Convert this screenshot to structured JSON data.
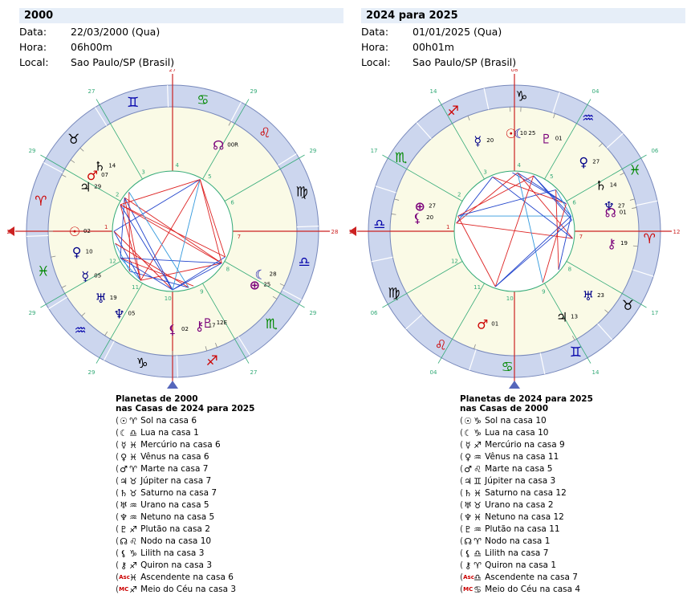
{
  "left": {
    "title": "2000",
    "labels": {
      "date": "Data:",
      "time": "Hora:",
      "place": "Local:"
    },
    "date": "22/03/2000 (Qua)",
    "time": "06h00m",
    "place": "Sao Paulo/SP (Brasil)",
    "legend_title_1": "Planetas de 2000",
    "legend_title_2": "nas Casas de 2024 para 2025",
    "legend": [
      {
        "p": "☉",
        "s": "♈",
        "text": "Sol na casa 6"
      },
      {
        "p": "☾",
        "s": "♎",
        "text": "Lua na casa 1"
      },
      {
        "p": "☿",
        "s": "♓",
        "text": "Mercúrio na casa 6"
      },
      {
        "p": "♀",
        "s": "♓",
        "text": "Vênus na casa 6"
      },
      {
        "p": "♂",
        "s": "♈",
        "text": "Marte na casa 7"
      },
      {
        "p": "♃",
        "s": "♉",
        "text": "Júpiter na casa 7"
      },
      {
        "p": "♄",
        "s": "♉",
        "text": "Saturno na casa 7"
      },
      {
        "p": "♅",
        "s": "♒",
        "text": "Urano na casa 5"
      },
      {
        "p": "♆",
        "s": "♒",
        "text": "Netuno na casa 5"
      },
      {
        "p": "♇",
        "s": "♐",
        "text": "Plutão na casa 2"
      },
      {
        "p": "☊",
        "s": "♌",
        "text": "Nodo na casa 10"
      },
      {
        "p": "⚸",
        "s": "♑",
        "text": "Lilith na casa 3"
      },
      {
        "p": "⚷",
        "s": "♐",
        "text": "Quiron na casa 3"
      },
      {
        "p": "Asc",
        "s": "♓",
        "text": "Ascendente na casa 6"
      },
      {
        "p": "MC",
        "s": "♐",
        "text": "Meio do Céu na casa 3"
      }
    ]
  },
  "right": {
    "title": "2024 para 2025",
    "labels": {
      "date": "Data:",
      "time": "Hora:",
      "place": "Local:"
    },
    "date": "01/01/2025 (Qua)",
    "time": "00h01m",
    "place": "Sao Paulo/SP (Brasil)",
    "legend_title_1": "Planetas de 2024 para 2025",
    "legend_title_2": "nas Casas de 2000",
    "legend": [
      {
        "p": "☉",
        "s": "♑",
        "text": "Sol na casa 10"
      },
      {
        "p": "☾",
        "s": "♑",
        "text": "Lua na casa 10"
      },
      {
        "p": "☿",
        "s": "♐",
        "text": "Mercúrio na casa 9"
      },
      {
        "p": "♀",
        "s": "♒",
        "text": "Vênus na casa 11"
      },
      {
        "p": "♂",
        "s": "♌",
        "text": "Marte na casa 5"
      },
      {
        "p": "♃",
        "s": "♊",
        "text": "Júpiter na casa 3"
      },
      {
        "p": "♄",
        "s": "♓",
        "text": "Saturno na casa 12"
      },
      {
        "p": "♅",
        "s": "♉",
        "text": "Urano na casa 2"
      },
      {
        "p": "♆",
        "s": "♓",
        "text": "Netuno na casa 12"
      },
      {
        "p": "♇",
        "s": "♒",
        "text": "Plutão na casa 11"
      },
      {
        "p": "☊",
        "s": "♈",
        "text": "Nodo na casa 1"
      },
      {
        "p": "⚸",
        "s": "♎",
        "text": "Lilith na casa 7"
      },
      {
        "p": "⚷",
        "s": "♈",
        "text": "Quiron na casa 1"
      },
      {
        "p": "Asc",
        "s": "♎",
        "text": "Ascendente na casa 7"
      },
      {
        "p": "MC",
        "s": "♋",
        "text": "Meio do Céu na casa 4"
      }
    ]
  },
  "wheels": {
    "left": {
      "asc_lon": 2,
      "signs": [
        "♈",
        "♉",
        "♊",
        "♋",
        "♌",
        "♍",
        "♎",
        "♏",
        "♐",
        "♑",
        "♒",
        "♓"
      ],
      "sign_colors": [
        "#cc0000",
        "#000000",
        "#0000aa",
        "#008800",
        "#cc0000",
        "#000000",
        "#0000aa",
        "#008800",
        "#cc0000",
        "#000000",
        "#0000aa",
        "#008800"
      ],
      "cusp_degrees": [
        "28",
        "29",
        "27",
        "27",
        "29",
        "29",
        "28",
        "29",
        "27",
        "27",
        "29",
        "29"
      ],
      "house_numbers": [
        "1",
        "2",
        "3",
        "4",
        "5",
        "6",
        "7",
        "8",
        "9",
        "10",
        "11",
        "12"
      ],
      "planets": [
        {
          "g": "☉",
          "d": "02",
          "lon": 2,
          "c": "#cc0000"
        },
        {
          "g": "♅",
          "d": "19",
          "lon": 319,
          "c": "#000088"
        },
        {
          "g": "♆",
          "d": "05",
          "lon": 305,
          "c": "#000088"
        },
        {
          "g": "☿",
          "d": "05",
          "lon": 335,
          "c": "#000088"
        },
        {
          "g": "♀",
          "d": "10",
          "lon": 350,
          "c": "#000088"
        },
        {
          "g": "♂",
          "d": "07",
          "lon": 37,
          "c": "#cc0000"
        },
        {
          "g": "♃",
          "d": "29",
          "lon": 29,
          "c": "#000000"
        },
        {
          "g": "♄",
          "d": "14",
          "lon": 44,
          "c": "#000000"
        },
        {
          "g": "⚸",
          "d": "02",
          "lon": 272,
          "c": "#7a007a"
        },
        {
          "g": "♇",
          "d": "12E",
          "lon": 251,
          "c": "#7a007a"
        },
        {
          "g": "⚷",
          "d": "17",
          "lon": 256,
          "c": "#7a007a"
        },
        {
          "g": "☾",
          "d": "28",
          "lon": 208,
          "c": "#0000aa"
        },
        {
          "g": "⊕",
          "d": "25",
          "lon": 215,
          "c": "#7a007a"
        },
        {
          "g": "☊",
          "d": "00R",
          "lon": 120,
          "c": "#7a007a"
        }
      ]
    },
    "right": {
      "asc_lon": 192,
      "signs": [
        "♈",
        "♉",
        "♊",
        "♋",
        "♌",
        "♍",
        "♎",
        "♏",
        "♐",
        "♑",
        "♒",
        "♓"
      ],
      "sign_colors": [
        "#cc0000",
        "#000000",
        "#0000aa",
        "#008800",
        "#cc0000",
        "#000000",
        "#0000aa",
        "#008800",
        "#cc0000",
        "#000000",
        "#0000aa",
        "#008800"
      ],
      "cusp_degrees": [
        "12",
        "17",
        "14",
        "08",
        "04",
        "06",
        "12",
        "17",
        "14",
        "08",
        "04",
        "06"
      ],
      "house_numbers": [
        "1",
        "2",
        "3",
        "4",
        "5",
        "6",
        "7",
        "8",
        "9",
        "10",
        "11",
        "12"
      ],
      "planets": [
        {
          "g": "⚸",
          "d": "20",
          "lon": 200,
          "c": "#7a007a"
        },
        {
          "g": "⊕",
          "d": "27",
          "lon": 207,
          "c": "#7a007a"
        },
        {
          "g": "☿",
          "d": "20",
          "lon": 260,
          "c": "#000088"
        },
        {
          "g": "☉",
          "d": "10",
          "lon": 280,
          "c": "#cc0000"
        },
        {
          "g": "☾",
          "d": "25",
          "lon": 285,
          "c": "#0000aa"
        },
        {
          "g": "♇",
          "d": "01",
          "lon": 301,
          "c": "#7a007a"
        },
        {
          "g": "♀",
          "d": "27",
          "lon": 327,
          "c": "#000088"
        },
        {
          "g": "♄",
          "d": "14",
          "lon": 344,
          "c": "#000000"
        },
        {
          "g": "♆",
          "d": "27",
          "lon": 357,
          "c": "#000088"
        },
        {
          "g": "☊",
          "d": "01",
          "lon": 1,
          "c": "#7a007a"
        },
        {
          "g": "⚷",
          "d": "19",
          "lon": 19,
          "c": "#7a007a"
        },
        {
          "g": "♅",
          "d": "23",
          "lon": 53,
          "c": "#000088"
        },
        {
          "g": "♃",
          "d": "13",
          "lon": 73,
          "c": "#000000"
        },
        {
          "g": "♂",
          "d": "01",
          "lon": 121,
          "c": "#cc0000"
        }
      ]
    }
  },
  "colors": {
    "house_fill": "#fafae6",
    "ring_fill": "#ccd6ee",
    "axis_red": "#cc2222",
    "aspect_red": "#dd2222",
    "aspect_blue": "#2244cc",
    "aspect_light": "#3399dd",
    "house_line": "#33aa77"
  }
}
